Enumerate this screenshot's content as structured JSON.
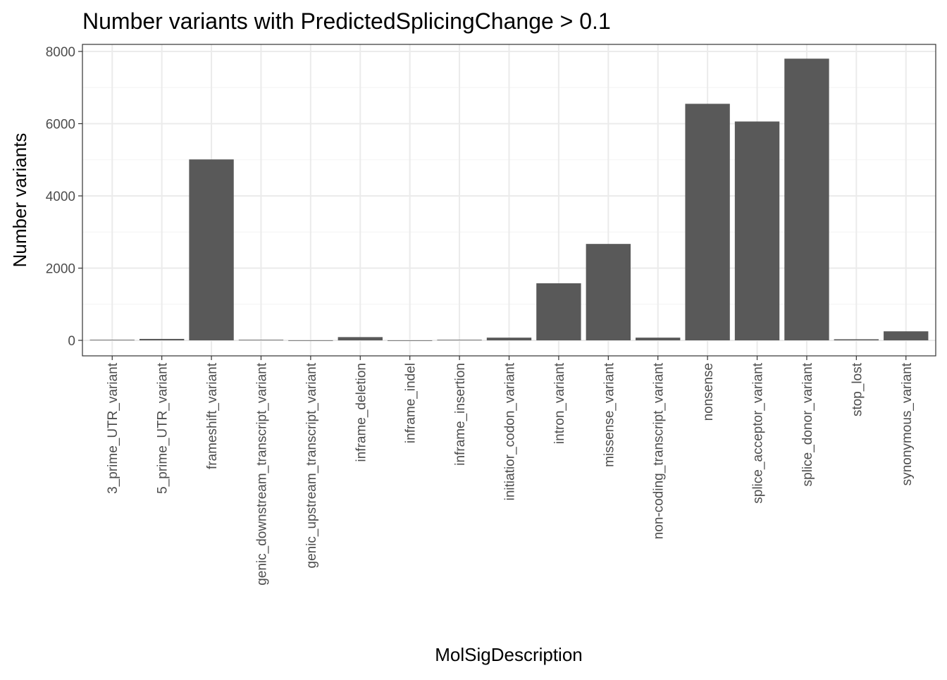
{
  "chart_data": {
    "type": "bar",
    "title": "Number variants with PredictedSplicingChange > 0.1",
    "xlabel": "MolSigDescription",
    "ylabel": "Number variants",
    "ylim": [
      -400,
      8200
    ],
    "yticks": [
      0,
      2000,
      4000,
      6000,
      8000
    ],
    "grid": true,
    "bar_color": "#595959",
    "categories": [
      "3_prime_UTR_variant",
      "5_prime_UTR_variant",
      "frameshift_variant",
      "genic_downstream_transcript_variant",
      "genic_upstream_transcript_variant",
      "inframe_deletion",
      "inframe_indel",
      "inframe_insertion",
      "initiatior_codon_variant",
      "intron_variant",
      "missense_variant",
      "non-coding_transcript_variant",
      "nonsense",
      "splice_acceptor_variant",
      "splice_donor_variant",
      "stop_lost",
      "synonymous_variant"
    ],
    "values": [
      15,
      40,
      5010,
      15,
      2,
      90,
      1,
      15,
      75,
      1580,
      2670,
      75,
      6550,
      6060,
      7800,
      30,
      250
    ]
  }
}
